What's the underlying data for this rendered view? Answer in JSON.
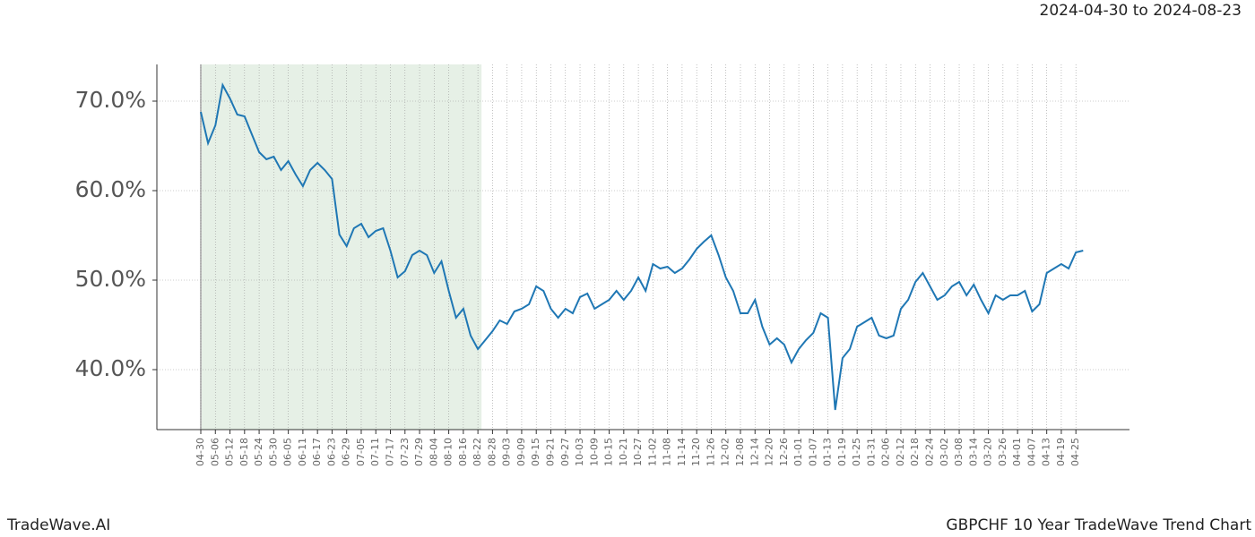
{
  "chart_data": {
    "type": "line",
    "title": "2024-04-30 to 2024-08-23",
    "footer_left": "TradeWave.AI",
    "footer_right": "GBPCHF 10 Year TradeWave Trend Chart",
    "categories": [
      "04-30",
      null,
      "05-06",
      null,
      "05-12",
      null,
      "05-18",
      null,
      "05-24",
      null,
      "05-30",
      null,
      "06-05",
      null,
      "06-11",
      null,
      "06-17",
      null,
      "06-23",
      null,
      "06-29",
      null,
      "07-05",
      null,
      "07-11",
      null,
      "07-17",
      null,
      "07-23",
      null,
      "07-29",
      null,
      "08-04",
      null,
      "08-10",
      null,
      "08-16",
      null,
      "08-22",
      null,
      "08-28",
      null,
      "09-03",
      null,
      "09-09",
      null,
      "09-15",
      null,
      "09-21",
      null,
      "09-27",
      null,
      "10-03",
      null,
      "10-09",
      null,
      "10-15",
      null,
      "10-21",
      null,
      "10-27",
      null,
      "11-02",
      null,
      "11-08",
      null,
      "11-14",
      null,
      "11-20",
      null,
      "11-26",
      null,
      "12-02",
      null,
      "12-08",
      null,
      "12-14",
      null,
      "12-20",
      null,
      "12-26",
      null,
      "01-01",
      null,
      "01-07",
      null,
      "01-13",
      null,
      "01-19",
      null,
      "01-25",
      null,
      "01-31",
      null,
      "02-06",
      null,
      "02-12",
      null,
      "02-18",
      null,
      "02-24",
      null,
      "03-02",
      null,
      "03-08",
      null,
      "03-14",
      null,
      "03-20",
      null,
      "03-26",
      null,
      "04-01",
      null,
      "04-07",
      null,
      "04-13",
      null,
      "04-19",
      null,
      "04-25",
      null
    ],
    "series": [
      {
        "color": "#1f77b4",
        "values": [
          68.8,
          65.3,
          67.3,
          71.8,
          70.3,
          68.5,
          68.3,
          66.3,
          64.3,
          63.5,
          63.8,
          62.3,
          63.3,
          61.8,
          60.5,
          62.3,
          63.1,
          62.3,
          61.3,
          55.1,
          53.8,
          55.8,
          56.3,
          54.8,
          55.5,
          55.8,
          53.3,
          50.3,
          51.0,
          52.8,
          53.3,
          52.8,
          50.8,
          52.1,
          48.8,
          45.8,
          46.8,
          43.8,
          42.3,
          43.3,
          44.3,
          45.5,
          45.1,
          46.5,
          46.8,
          47.3,
          49.3,
          48.8,
          46.8,
          45.8,
          46.8,
          46.3,
          48.1,
          48.5,
          46.8,
          47.3,
          47.8,
          48.8,
          47.8,
          48.8,
          50.3,
          48.8,
          51.8,
          51.3,
          51.5,
          50.8,
          51.3,
          52.3,
          53.5,
          54.3,
          55.0,
          52.8,
          50.3,
          48.8,
          46.3,
          46.3,
          47.8,
          44.8,
          42.8,
          43.5,
          42.8,
          40.8,
          42.3,
          43.3,
          44.1,
          46.3,
          45.8,
          35.5,
          41.3,
          42.3,
          44.8,
          45.3,
          45.8,
          43.8,
          43.5,
          43.8,
          46.8,
          47.8,
          49.8,
          50.8,
          49.3,
          47.8,
          48.3,
          49.3,
          49.8,
          48.3,
          49.5,
          47.8,
          46.3,
          48.3,
          47.8,
          48.3,
          48.3,
          48.8,
          46.5,
          47.3,
          50.8,
          51.3,
          51.8,
          51.3,
          53.1,
          53.3
        ]
      }
    ],
    "shaded": [
      "04-30",
      "08-22"
    ],
    "shade_color": "#e6f0e6",
    "ylim": [
      33.3,
      74.1
    ],
    "yticks": [
      {
        "value": 40,
        "label": "40.0%"
      },
      {
        "value": 50,
        "label": "50.0%"
      },
      {
        "value": 60,
        "label": "60.0%"
      },
      {
        "value": 70,
        "label": "70.0%"
      }
    ],
    "grid": true
  }
}
